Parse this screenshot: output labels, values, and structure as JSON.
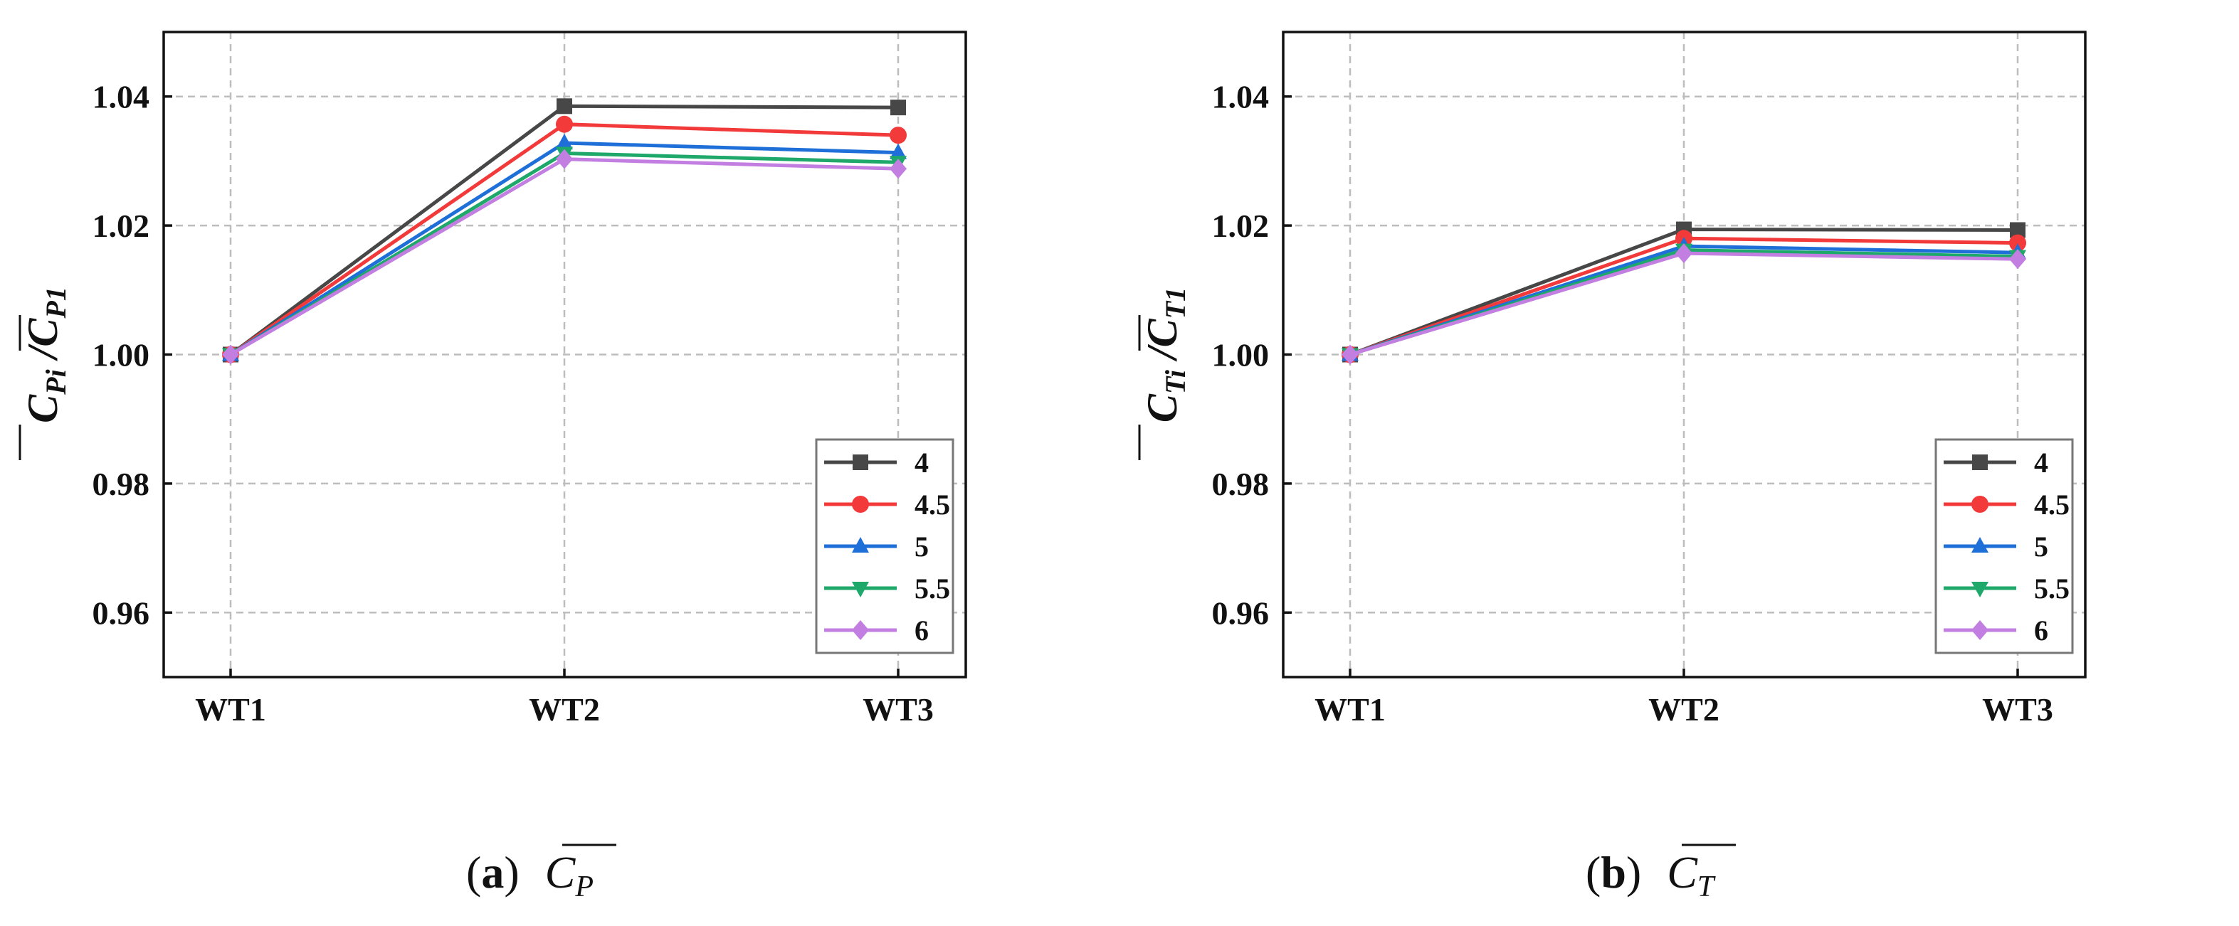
{
  "chart_data": [
    {
      "type": "line",
      "panel_label": "(a)",
      "caption_symbol": "C",
      "caption_sub": "P",
      "ylabel": {
        "num": "C",
        "num_sub": "Pi",
        "sep": "/",
        "den": "C",
        "den_sub": "P1"
      },
      "categories": [
        "WT1",
        "WT2",
        "WT3"
      ],
      "ylim": [
        0.95,
        1.05
      ],
      "yticks": [
        0.96,
        0.98,
        1.0,
        1.02,
        1.04
      ],
      "ytick_labels": [
        "0.96",
        "0.98",
        "1.00",
        "1.02",
        "1.04"
      ],
      "grid": true,
      "legend_position": "bottom-right",
      "series": [
        {
          "name": "4",
          "values": [
            1.0,
            1.0385,
            1.0383
          ]
        },
        {
          "name": "4.5",
          "values": [
            1.0,
            1.0357,
            1.034
          ]
        },
        {
          "name": "5",
          "values": [
            1.0,
            1.0328,
            1.0313
          ]
        },
        {
          "name": "5.5",
          "values": [
            1.0,
            1.0312,
            1.0298
          ]
        },
        {
          "name": "6",
          "values": [
            1.0,
            1.0303,
            1.0288
          ]
        }
      ]
    },
    {
      "type": "line",
      "panel_label": "(b)",
      "caption_symbol": "C",
      "caption_sub": "T",
      "ylabel": {
        "num": "C",
        "num_sub": "Ti",
        "sep": "/",
        "den": "C",
        "den_sub": "T1"
      },
      "categories": [
        "WT1",
        "WT2",
        "WT3"
      ],
      "ylim": [
        0.95,
        1.05
      ],
      "yticks": [
        0.96,
        0.98,
        1.0,
        1.02,
        1.04
      ],
      "ytick_labels": [
        "0.96",
        "0.98",
        "1.00",
        "1.02",
        "1.04"
      ],
      "grid": true,
      "legend_position": "bottom-right",
      "series": [
        {
          "name": "4",
          "values": [
            1.0,
            1.0194,
            1.0193
          ]
        },
        {
          "name": "4.5",
          "values": [
            1.0,
            1.018,
            1.0173
          ]
        },
        {
          "name": "5",
          "values": [
            1.0,
            1.0168,
            1.0158
          ]
        },
        {
          "name": "5.5",
          "values": [
            1.0,
            1.0162,
            1.0152
          ]
        },
        {
          "name": "6",
          "values": [
            1.0,
            1.0157,
            1.0148
          ]
        }
      ]
    }
  ],
  "series_styles": [
    {
      "color": "#474747",
      "marker": "square"
    },
    {
      "color": "#f23a3a",
      "marker": "circle"
    },
    {
      "color": "#1f6fd8",
      "marker": "triangle-up"
    },
    {
      "color": "#1ea86a",
      "marker": "triangle-down"
    },
    {
      "color": "#c27ee0",
      "marker": "diamond"
    }
  ]
}
